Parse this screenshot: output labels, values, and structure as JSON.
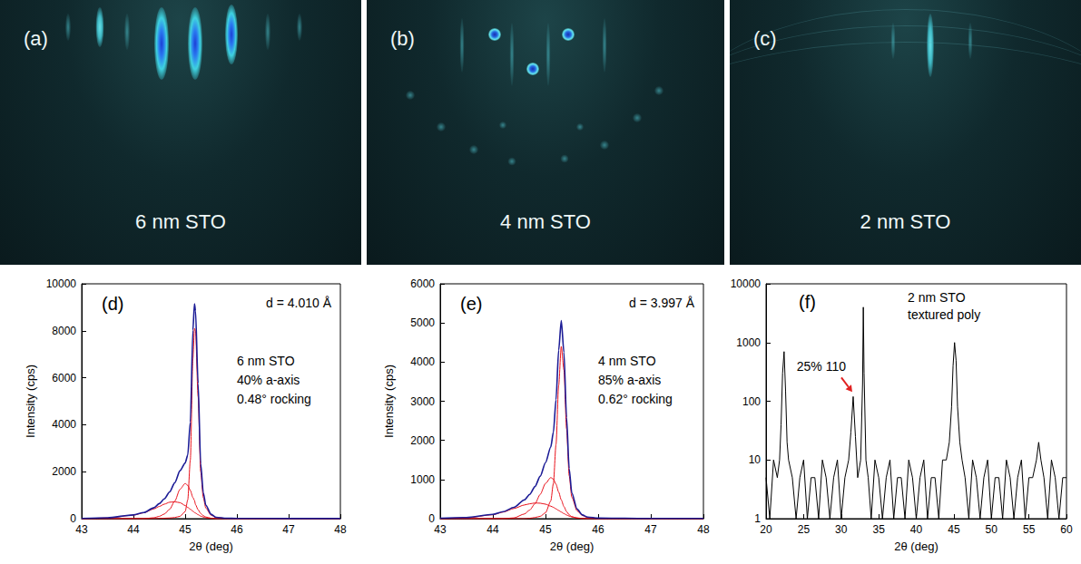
{
  "images": [
    {
      "panel": "(a)",
      "label": "6 nm STO"
    },
    {
      "panel": "(b)",
      "label": "4 nm STO"
    },
    {
      "panel": "(c)",
      "label": "2 nm STO"
    }
  ],
  "chart_data": [
    {
      "type": "line",
      "panel": "(d)",
      "xlabel": "2θ (deg)",
      "ylabel": "Intensity (cps)",
      "annotations": [
        {
          "text": "d = 4.010 Å"
        },
        {
          "text": "6 nm STO"
        },
        {
          "text": "40% a-axis"
        },
        {
          "text": "0.48° rocking"
        }
      ],
      "x": [
        43,
        43.5,
        44,
        44.2,
        44.4,
        44.5,
        44.6,
        44.7,
        44.8,
        44.9,
        45.0,
        45.05,
        45.1,
        45.15,
        45.18,
        45.2,
        45.25,
        45.3,
        45.35,
        45.4,
        45.5,
        45.6,
        45.8,
        46,
        47,
        48
      ],
      "series": [
        {
          "color": "#1c1c96",
          "values": [
            10,
            40,
            160,
            260,
            470,
            640,
            850,
            1140,
            1530,
            2040,
            2370,
            2710,
            4110,
            8030,
            9150,
            8850,
            5760,
            2340,
            1110,
            570,
            190,
            60,
            20,
            10,
            5,
            5
          ]
        },
        {
          "color": "#e8101a",
          "values": [
            0,
            0,
            0,
            0,
            0,
            10,
            20,
            30,
            50,
            100,
            300,
            800,
            2500,
            6800,
            8100,
            8000,
            5200,
            2000,
            900,
            450,
            150,
            50,
            10,
            0,
            0,
            0
          ]
        },
        {
          "color": "#e8101a",
          "values": [
            0,
            0,
            0,
            0,
            40,
            100,
            200,
            400,
            750,
            1250,
            1500,
            1420,
            1200,
            900,
            780,
            600,
            380,
            220,
            130,
            70,
            20,
            0,
            0,
            0,
            0,
            0
          ]
        },
        {
          "color": "#e8101a",
          "values": [
            0,
            30,
            150,
            250,
            420,
            520,
            620,
            700,
            720,
            680,
            560,
            480,
            400,
            320,
            260,
            240,
            170,
            110,
            70,
            40,
            10,
            0,
            0,
            0,
            0,
            0
          ]
        }
      ],
      "xlim": [
        43,
        48
      ],
      "xticks": [
        43,
        44,
        45,
        46,
        47,
        48
      ],
      "ylim": [
        0,
        10000
      ],
      "yticks": [
        0,
        2000,
        4000,
        6000,
        8000,
        10000
      ],
      "grid": false
    },
    {
      "type": "line",
      "panel": "(e)",
      "xlabel": "2θ (deg)",
      "ylabel": "Intensity (cps)",
      "annotations": [
        {
          "text": "d = 3.997 Å"
        },
        {
          "text": "4 nm STO"
        },
        {
          "text": "85% a-axis"
        },
        {
          "text": "0.62° rocking"
        }
      ],
      "x": [
        43,
        43.5,
        44,
        44.2,
        44.4,
        44.6,
        44.7,
        44.8,
        44.9,
        45.0,
        45.1,
        45.15,
        45.2,
        45.25,
        45.3,
        45.35,
        45.4,
        45.45,
        45.5,
        45.6,
        45.7,
        45.8,
        46,
        46.5,
        47,
        48
      ],
      "series": [
        {
          "color": "#1c1c96",
          "values": [
            10,
            30,
            110,
            180,
            290,
            480,
            620,
            820,
            1085,
            1430,
            1830,
            2210,
            3040,
            4300,
            5060,
            4250,
            2585,
            1275,
            655,
            245,
            95,
            40,
            15,
            10,
            5,
            5
          ]
        },
        {
          "color": "#e8101a",
          "values": [
            0,
            0,
            0,
            0,
            0,
            0,
            10,
            30,
            60,
            150,
            450,
            900,
            1900,
            3400,
            4400,
            3800,
            2300,
            1100,
            550,
            200,
            80,
            30,
            0,
            0,
            0,
            0
          ]
        },
        {
          "color": "#e8101a",
          "values": [
            0,
            0,
            0,
            0,
            20,
            120,
            220,
            380,
            620,
            900,
            1050,
            1010,
            880,
            680,
            480,
            310,
            180,
            100,
            50,
            15,
            0,
            0,
            0,
            0,
            0,
            0
          ]
        },
        {
          "color": "#e8101a",
          "values": [
            0,
            20,
            100,
            170,
            260,
            350,
            380,
            400,
            395,
            370,
            320,
            290,
            250,
            210,
            170,
            130,
            95,
            65,
            45,
            20,
            5,
            0,
            0,
            0,
            0,
            0
          ]
        }
      ],
      "xlim": [
        43,
        48
      ],
      "xticks": [
        43,
        44,
        45,
        46,
        47,
        48
      ],
      "ylim": [
        0,
        6000
      ],
      "yticks": [
        0,
        1000,
        2000,
        3000,
        4000,
        5000,
        6000
      ],
      "grid": false
    },
    {
      "type": "line",
      "panel": "(f)",
      "log": "y",
      "xlabel": "2θ (deg)",
      "annotations": [
        {
          "text": "25% 110",
          "x": 31.6,
          "y": 120,
          "color": "#e02020"
        },
        {
          "text": "2 nm STO"
        },
        {
          "text": "textured poly"
        }
      ],
      "x": [
        20,
        20.5,
        21,
        21.5,
        21.8,
        22.0,
        22.2,
        22.4,
        22.6,
        22.8,
        23.0,
        23.5,
        24,
        24.5,
        25,
        25.5,
        26,
        26.5,
        27,
        27.5,
        28,
        28.5,
        29,
        29.5,
        30,
        30.5,
        31,
        31.3,
        31.6,
        31.9,
        32.2,
        32.6,
        32.85,
        32.95,
        33.05,
        33.3,
        33.6,
        34,
        34.5,
        35,
        35.5,
        36,
        36.5,
        37,
        37.5,
        38,
        38.5,
        39,
        39.5,
        40,
        40.5,
        41,
        41.5,
        42,
        42.5,
        43,
        43.5,
        44,
        44.4,
        44.7,
        44.9,
        45.1,
        45.3,
        45.5,
        45.8,
        46.1,
        46.5,
        47,
        47.5,
        48,
        48.5,
        49,
        49.5,
        50,
        50.5,
        51,
        51.5,
        52,
        52.5,
        53,
        53.5,
        54,
        54.5,
        55,
        55.5,
        56,
        56.3,
        56.6,
        57,
        57.5,
        58,
        58.5,
        59,
        59.5,
        60
      ],
      "series": [
        {
          "color": "#000000",
          "values": [
            5,
            1,
            10,
            5,
            10,
            40,
            300,
            700,
            150,
            20,
            10,
            5,
            1,
            5,
            10,
            1,
            5,
            5,
            1,
            10,
            5,
            1,
            5,
            10,
            1,
            5,
            10,
            30,
            120,
            25,
            5,
            10,
            200,
            4000,
            300,
            10,
            5,
            1,
            10,
            5,
            1,
            5,
            10,
            1,
            5,
            5,
            1,
            10,
            5,
            1,
            5,
            10,
            1,
            5,
            5,
            1,
            10,
            10,
            20,
            80,
            400,
            1000,
            500,
            80,
            20,
            10,
            5,
            1,
            10,
            5,
            1,
            5,
            10,
            1,
            5,
            5,
            1,
            10,
            5,
            1,
            5,
            10,
            1,
            5,
            5,
            10,
            20,
            10,
            5,
            1,
            10,
            5,
            1,
            5,
            5
          ]
        }
      ],
      "xlim": [
        20,
        60
      ],
      "xticks": [
        20,
        25,
        30,
        35,
        40,
        45,
        50,
        55,
        60
      ],
      "ylim": [
        1,
        10000
      ],
      "yticks": [
        1,
        10,
        100,
        1000,
        10000
      ],
      "grid": false
    }
  ]
}
